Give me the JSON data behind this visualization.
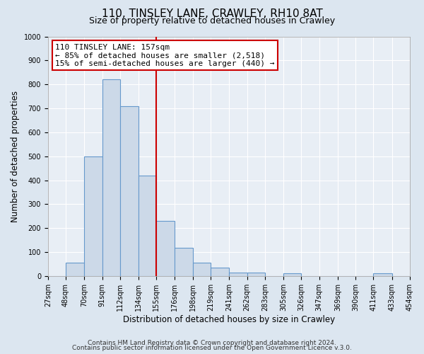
{
  "title": "110, TINSLEY LANE, CRAWLEY, RH10 8AT",
  "subtitle": "Size of property relative to detached houses in Crawley",
  "xlabel": "Distribution of detached houses by size in Crawley",
  "ylabel": "Number of detached properties",
  "bin_edges": [
    27,
    48,
    70,
    91,
    112,
    134,
    155,
    176,
    198,
    219,
    241,
    262,
    283,
    305,
    326,
    347,
    369,
    390,
    411,
    433,
    454
  ],
  "bin_counts": [
    0,
    57,
    500,
    820,
    710,
    420,
    230,
    118,
    57,
    35,
    13,
    13,
    0,
    12,
    0,
    0,
    0,
    0,
    12,
    0
  ],
  "bar_facecolor": "#ccd9e8",
  "bar_edgecolor": "#6699cc",
  "vline_x": 155,
  "vline_color": "#cc0000",
  "annotation_line1": "110 TINSLEY LANE: 157sqm",
  "annotation_line2": "← 85% of detached houses are smaller (2,518)",
  "annotation_line3": "15% of semi-detached houses are larger (440) →",
  "annotation_box_edgecolor": "#cc0000",
  "ylim": [
    0,
    1000
  ],
  "yticks": [
    0,
    100,
    200,
    300,
    400,
    500,
    600,
    700,
    800,
    900,
    1000
  ],
  "x_tick_labels": [
    "27sqm",
    "48sqm",
    "70sqm",
    "91sqm",
    "112sqm",
    "134sqm",
    "155sqm",
    "176sqm",
    "198sqm",
    "219sqm",
    "241sqm",
    "262sqm",
    "283sqm",
    "305sqm",
    "326sqm",
    "347sqm",
    "369sqm",
    "390sqm",
    "411sqm",
    "433sqm",
    "454sqm"
  ],
  "background_color": "#dce6f0",
  "plot_bg_color": "#e8eef5",
  "footer_line1": "Contains HM Land Registry data © Crown copyright and database right 2024.",
  "footer_line2": "Contains public sector information licensed under the Open Government Licence v.3.0.",
  "title_fontsize": 11,
  "subtitle_fontsize": 9,
  "tick_label_fontsize": 7,
  "axis_label_fontsize": 8.5,
  "footer_fontsize": 6.5,
  "annotation_fontsize": 8
}
